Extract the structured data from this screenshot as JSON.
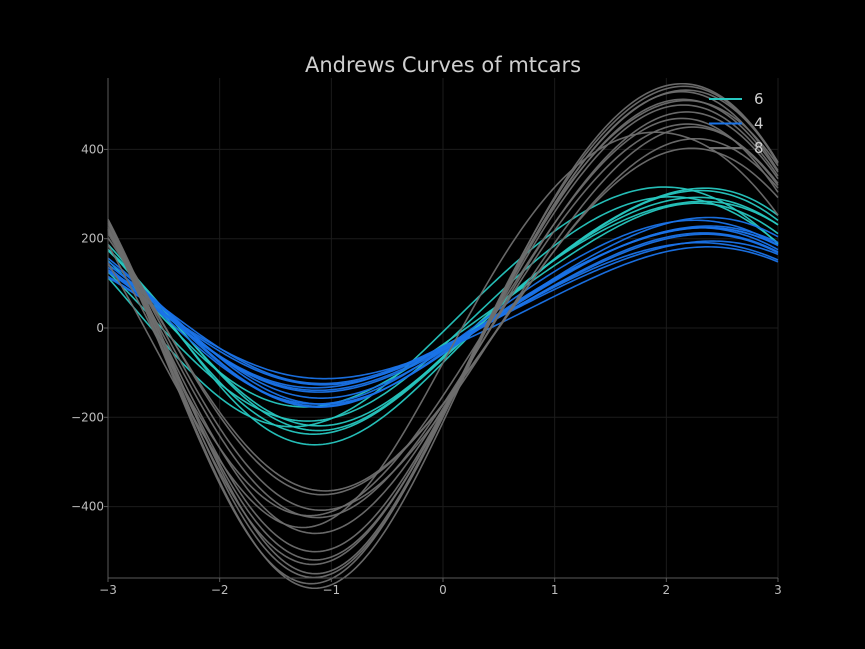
{
  "chart_data": {
    "type": "line",
    "title": "Andrews Curves of mtcars",
    "xlabel": "",
    "ylabel": "",
    "xlim": [
      -3,
      3
    ],
    "ylim": [
      -560,
      560
    ],
    "grid": true,
    "legend_position": "top-right",
    "x_ticks": [
      -3,
      -2,
      -1,
      0,
      1,
      2,
      3
    ],
    "x_tick_labels": [
      "−3",
      "−2",
      "−1",
      "0",
      "1",
      "2",
      "3"
    ],
    "y_ticks": [
      -400,
      -200,
      0,
      200,
      400
    ],
    "y_tick_labels": [
      "−400",
      "−200",
      "0",
      "200",
      "400"
    ],
    "colors": {
      "6": "#27c7c0",
      "4": "#1a73e8",
      "8": "#6e6e6e",
      "background": "#000000",
      "axis": "#5a5a5a",
      "grid": "#1c1c1c"
    },
    "series": [
      {
        "name": "6",
        "color": "#27c7c0",
        "curves": [
          {
            "a0": 70,
            "b1": 215,
            "a1": -135,
            "b2": 5,
            "a2": 20
          },
          {
            "a0": 65,
            "b1": 215,
            "a1": -135,
            "b2": 10,
            "a2": 25
          },
          {
            "a0": 80,
            "b1": 255,
            "a1": -80,
            "b2": -5,
            "a2": 15
          },
          {
            "a0": 70,
            "b1": 230,
            "a1": -100,
            "b2": 0,
            "a2": 10
          },
          {
            "a0": 75,
            "b1": 195,
            "a1": -110,
            "b2": -10,
            "a2": 20
          },
          {
            "a0": 60,
            "b1": 240,
            "a1": -150,
            "b2": 5,
            "a2": 30
          },
          {
            "a0": 65,
            "b1": 230,
            "a1": -140,
            "b2": 0,
            "a2": 25
          }
        ]
      },
      {
        "name": "4",
        "color": "#1a73e8",
        "curves": [
          {
            "a0": 55,
            "b1": 140,
            "a1": -95,
            "b2": -5,
            "a2": 15
          },
          {
            "a0": 60,
            "b1": 175,
            "a1": -105,
            "b2": 0,
            "a2": 15
          },
          {
            "a0": 50,
            "b1": 165,
            "a1": -110,
            "b2": 5,
            "a2": 20
          },
          {
            "a0": 45,
            "b1": 115,
            "a1": -90,
            "b2": -5,
            "a2": 10
          },
          {
            "a0": 55,
            "b1": 125,
            "a1": -95,
            "b2": 0,
            "a2": 15
          },
          {
            "a0": 60,
            "b1": 150,
            "a1": -100,
            "b2": -5,
            "a2": 12
          },
          {
            "a0": 55,
            "b1": 160,
            "a1": -115,
            "b2": 5,
            "a2": 18
          },
          {
            "a0": 50,
            "b1": 130,
            "a1": -90,
            "b2": 0,
            "a2": 10
          },
          {
            "a0": 60,
            "b1": 170,
            "a1": -120,
            "b2": 0,
            "a2": 20
          },
          {
            "a0": 52,
            "b1": 145,
            "a1": -100,
            "b2": -3,
            "a2": 14
          },
          {
            "a0": 58,
            "b1": 155,
            "a1": -108,
            "b2": 2,
            "a2": 16
          }
        ]
      },
      {
        "name": "8",
        "color": "#6e6e6e",
        "curves": [
          {
            "a0": 30,
            "b1": 455,
            "a1": -240,
            "b2": 10,
            "a2": 30
          },
          {
            "a0": 25,
            "b1": 465,
            "a1": -250,
            "b2": 20,
            "a2": 40
          },
          {
            "a0": 35,
            "b1": 410,
            "a1": -230,
            "b2": 0,
            "a2": 25
          },
          {
            "a0": 40,
            "b1": 395,
            "a1": -200,
            "b2": -10,
            "a2": 20
          },
          {
            "a0": 20,
            "b1": 500,
            "a1": -260,
            "b2": 15,
            "a2": 35
          },
          {
            "a0": 22,
            "b1": 495,
            "a1": -250,
            "b2": 10,
            "a2": 40
          },
          {
            "a0": 30,
            "b1": 470,
            "a1": -240,
            "b2": 5,
            "a2": 30
          },
          {
            "a0": 40,
            "b1": 330,
            "a1": -220,
            "b2": -5,
            "a2": 20
          },
          {
            "a0": 35,
            "b1": 320,
            "a1": -210,
            "b2": 0,
            "a2": 15
          },
          {
            "a0": 45,
            "b1": 420,
            "a1": -140,
            "b2": 20,
            "a2": 30
          },
          {
            "a0": 25,
            "b1": 480,
            "a1": -255,
            "b2": 12,
            "a2": 38
          },
          {
            "a0": 35,
            "b1": 360,
            "a1": -230,
            "b2": -5,
            "a2": 20
          },
          {
            "a0": 30,
            "b1": 440,
            "a1": -235,
            "b2": 8,
            "a2": 28
          },
          {
            "a0": 38,
            "b1": 380,
            "a1": -220,
            "b2": 0,
            "a2": 22
          }
        ]
      }
    ]
  }
}
